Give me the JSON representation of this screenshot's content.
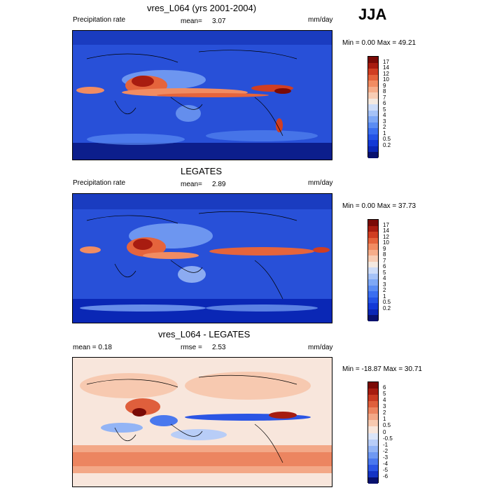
{
  "season": "JJA",
  "palettes": {
    "precip": [
      "#08116e",
      "#0a27b5",
      "#1339d6",
      "#2453e6",
      "#3a6ef0",
      "#5a8cf4",
      "#7ea8f6",
      "#a5c2f7",
      "#cddcf8",
      "#f4e9e0",
      "#f8cdb5",
      "#f6ad8a",
      "#f18c62",
      "#e5643c",
      "#d03e22",
      "#a81c10",
      "#7a0a06"
    ],
    "diff": [
      "#08116e",
      "#1534c4",
      "#2b55e4",
      "#4a78ee",
      "#6e98f3",
      "#93b4f5",
      "#b8cdf7",
      "#dbe5f9",
      "#f8e6dc",
      "#f7c9b0",
      "#f3a887",
      "#ec8560",
      "#df5f3c",
      "#c93b22",
      "#a61c10",
      "#7a0a06"
    ]
  },
  "panels": [
    {
      "title": "vres_L064 (yrs 2001-2004)",
      "left_label": "Precipitation rate",
      "mean_label": "mean=",
      "mean_value": "3.07",
      "units": "mm/day",
      "minmax": "Min =   0.00 Max =  49.21",
      "palette": "precip",
      "colorbar_labels": [
        "17",
        "14",
        "12",
        "10",
        "9",
        "8",
        "7",
        "6",
        "5",
        "4",
        "3",
        "2",
        "1",
        "0.5",
        "0.2"
      ]
    },
    {
      "title": "LEGATES",
      "left_label": "Precipitation rate",
      "mean_label": "mean=",
      "mean_value": "2.89",
      "units": "mm/day",
      "minmax": "Min =   0.00 Max =  37.73",
      "palette": "precip",
      "colorbar_labels": [
        "17",
        "14",
        "12",
        "10",
        "9",
        "8",
        "7",
        "6",
        "5",
        "4",
        "3",
        "2",
        "1",
        "0.5",
        "0.2"
      ]
    },
    {
      "title": "vres_L064 - LEGATES",
      "left_label": "mean =   0.18",
      "mean_label": "rmse =",
      "mean_value": "2.53",
      "units": "mm/day",
      "minmax": "Min = -18.87 Max =  30.71",
      "palette": "diff",
      "colorbar_labels": [
        "6",
        "5",
        "4",
        "3",
        "2",
        "1",
        "0.5",
        "0",
        "-0.5",
        "-1",
        "-2",
        "-3",
        "-4",
        "-5",
        "-6"
      ]
    }
  ],
  "chart_data": [
    {
      "type": "heatmap",
      "title": "vres_L064 (yrs 2001-2004)",
      "variable": "Precipitation rate",
      "units": "mm/day",
      "mean": 3.07,
      "min": 0.0,
      "max": 49.21,
      "levels": [
        0.2,
        0.5,
        1,
        2,
        3,
        4,
        5,
        6,
        7,
        8,
        9,
        10,
        12,
        14,
        17
      ]
    },
    {
      "type": "heatmap",
      "title": "LEGATES",
      "variable": "Precipitation rate",
      "units": "mm/day",
      "mean": 2.89,
      "min": 0.0,
      "max": 37.73,
      "levels": [
        0.2,
        0.5,
        1,
        2,
        3,
        4,
        5,
        6,
        7,
        8,
        9,
        10,
        12,
        14,
        17
      ]
    },
    {
      "type": "heatmap",
      "title": "vres_L064 - LEGATES",
      "units": "mm/day",
      "mean": 0.18,
      "rmse": 2.53,
      "min": -18.87,
      "max": 30.71,
      "levels": [
        -6,
        -5,
        -4,
        -3,
        -2,
        -1,
        -0.5,
        0,
        0.5,
        1,
        2,
        3,
        4,
        5,
        6
      ]
    }
  ]
}
